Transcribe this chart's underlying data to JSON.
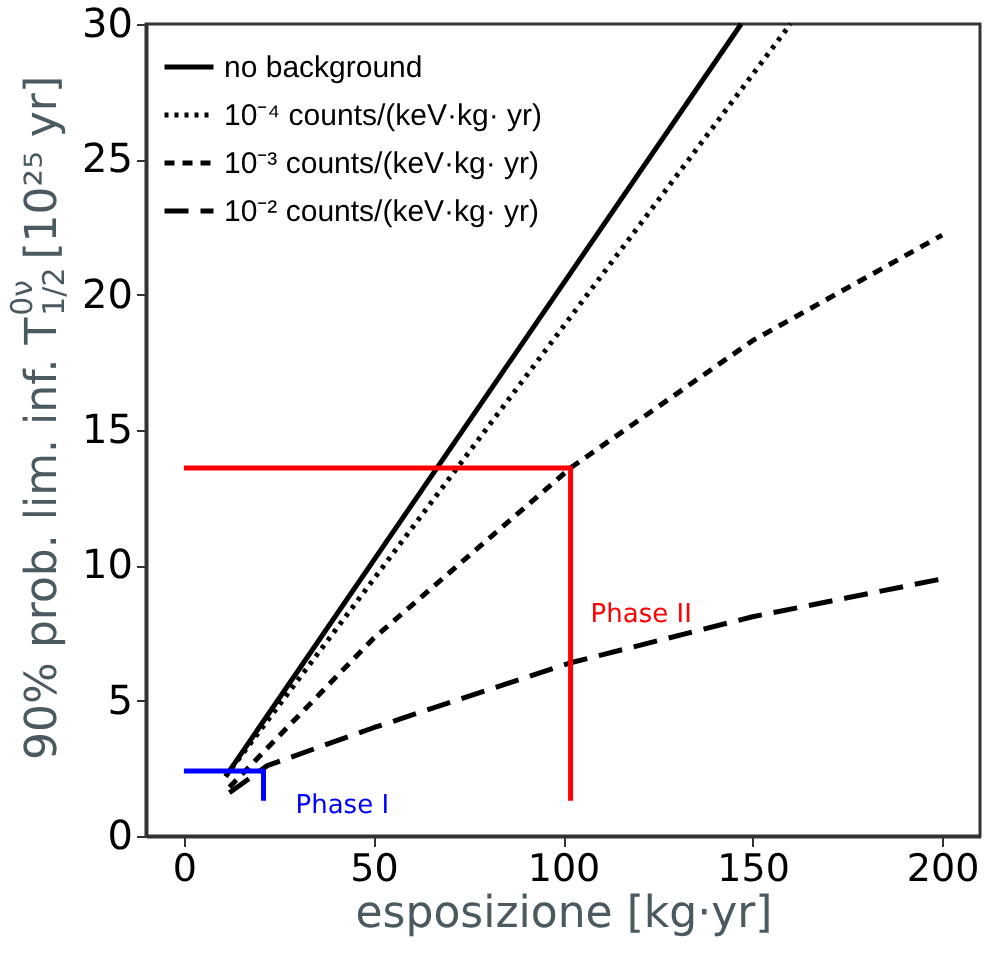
{
  "chart_data": {
    "type": "line",
    "xlabel": "esposizione [kg·yr]",
    "ylabel": "90% prob. lim. inf. T$^{0ν}$$_{1/2}$ [10²⁵ yr]",
    "xlim": [
      -10,
      210
    ],
    "xticks": [
      0,
      50,
      100,
      150,
      200
    ],
    "ylim": [
      0,
      30
    ],
    "yticks": [
      0,
      5,
      10,
      15,
      20,
      25,
      30
    ],
    "grid": false,
    "legend": "top left",
    "series": [
      {
        "name": "no background",
        "color": "#000000",
        "line_style": "solid",
        "x": [
          11,
          147
        ],
        "values": [
          2.2,
          30
        ]
      },
      {
        "name": "10⁻⁴ counts/(keV·kg· yr)",
        "color": "#000000",
        "line_style": "dotted",
        "x": [
          11,
          160
        ],
        "values": [
          2.2,
          30
        ]
      },
      {
        "name": "10⁻³ counts/(keV·kg· yr)",
        "color": "#000000",
        "line_style": "dashed",
        "x": [
          12,
          50,
          102,
          150,
          200
        ],
        "values": [
          1.8,
          7.3,
          13.6,
          18.3,
          22.2
        ]
      },
      {
        "name": "10⁻² counts/(keV·kg· yr)",
        "color": "#000000",
        "line_style": "dashed",
        "x": [
          12,
          22,
          50,
          102,
          150,
          175,
          200
        ],
        "values": [
          1.6,
          2.6,
          4.0,
          6.4,
          8.1,
          8.8,
          9.5
        ]
      },
      {
        "color": "#ff0000",
        "line_style": "solid",
        "x": [
          0,
          102,
          102
        ],
        "values": [
          13.6,
          13.6,
          1.3
        ]
      },
      {
        "color": "#0000ff",
        "line_style": "solid",
        "x": [
          0,
          21,
          21
        ],
        "values": [
          2.4,
          2.4,
          1.3
        ]
      }
    ],
    "annotations": [
      "Phase II",
      "Phase I"
    ]
  }
}
